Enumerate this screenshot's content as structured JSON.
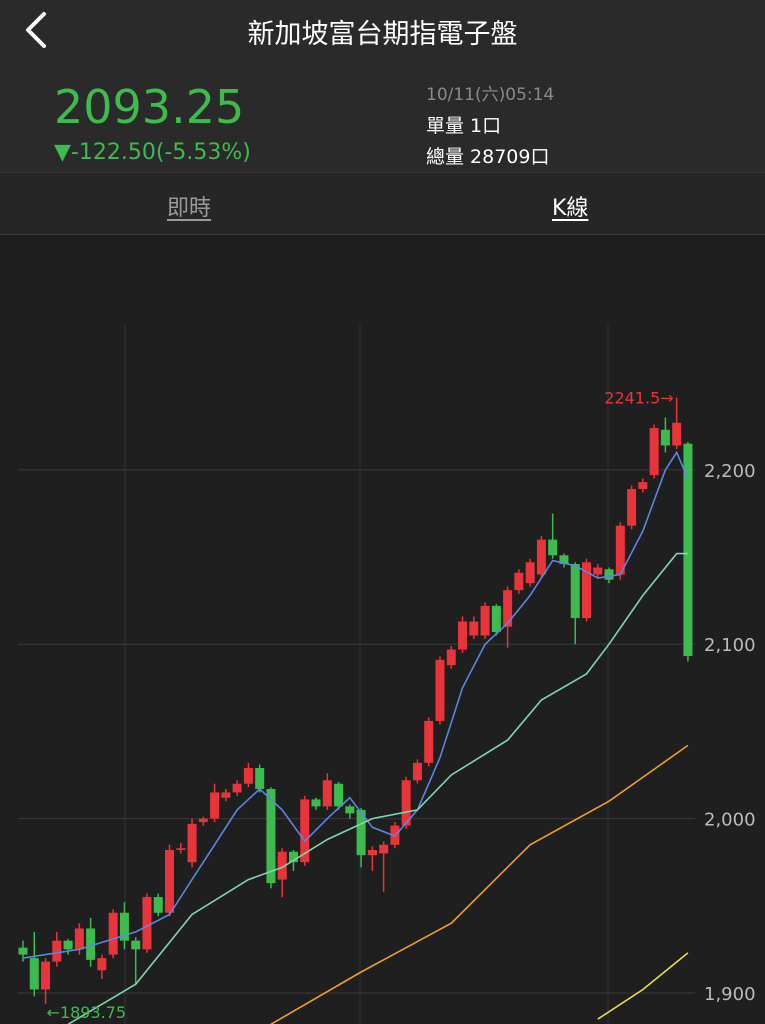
{
  "header": {
    "title": "新加坡富台期指電子盤"
  },
  "quote": {
    "price": "2093.25",
    "change": "▼-122.50(-5.53%)",
    "time": "10/11(六)05:14",
    "unit_volume": "單量 1口",
    "total_volume": "總量 28709口"
  },
  "tabs": [
    "即時",
    "K線"
  ],
  "chart_data": {
    "type": "candlestick",
    "ylim": [
      1882.2,
      2334.7
    ],
    "yticks": [
      {
        "value": 1900,
        "label": "1,900"
      },
      {
        "value": 2000,
        "label": "2,000"
      },
      {
        "value": 2100,
        "label": "2,100"
      },
      {
        "value": 2200,
        "label": "2,200"
      }
    ],
    "grid": true,
    "up_color": "#e8343b",
    "down_color": "#3dbb4e",
    "open": [
      1926,
      1920,
      1902,
      1918,
      1930,
      1925,
      1937,
      1913,
      1922,
      1946,
      1930,
      1925,
      1955,
      1946,
      1982,
      1975,
      1998,
      2000,
      2012,
      2015,
      2020,
      2029,
      2017,
      1965,
      1981,
      1975,
      2011,
      2007,
      2020,
      2007,
      2005,
      1979,
      1980,
      1985,
      1996,
      2022,
      2032,
      2056,
      2088,
      2097,
      2105,
      2105,
      2122,
      2110,
      2131,
      2135,
      2140,
      2160,
      2151,
      2146,
      2115,
      2140,
      2143,
      2140,
      2168,
      2189,
      2197,
      2223,
      2214,
      2215
    ],
    "high": [
      1930,
      1935,
      1920,
      1935,
      1931,
      1940,
      1943,
      1922,
      1948,
      1952,
      1932,
      1957,
      1957,
      1985,
      1986,
      2000,
      2001,
      2020,
      2017,
      2022,
      2032,
      2031,
      2018,
      1983,
      1982,
      2013,
      2012,
      2026,
      2021,
      2008,
      2006,
      1984,
      1987,
      1998,
      2024,
      2034,
      2058,
      2093,
      2099,
      2116,
      2116,
      2124,
      2123,
      2133,
      2143,
      2149,
      2162,
      2175,
      2152,
      2147,
      2149,
      2146,
      2144,
      2170,
      2191,
      2195,
      2226,
      2230,
      2241.5,
      2216
    ],
    "low": [
      1918,
      1898,
      1893.75,
      1915,
      1922,
      1922,
      1915,
      1908,
      1920,
      1925,
      1905,
      1923,
      1944,
      1944,
      1980,
      1972,
      1996,
      1998,
      2010,
      2013,
      2018,
      2015,
      1960,
      1955,
      1970,
      1973,
      2005,
      2005,
      2005,
      2000,
      1972,
      1970,
      1958,
      1983,
      1994,
      2020,
      2030,
      2054,
      2086,
      2095,
      2103,
      2103,
      2105,
      2098,
      2129,
      2133,
      2138,
      2149,
      2144,
      2100,
      2113,
      2138,
      2135,
      2137,
      2166,
      2187,
      2195,
      2210,
      2212,
      2090
    ],
    "close": [
      1922,
      1902,
      1918,
      1930,
      1925,
      1937,
      1919,
      1920,
      1946,
      1930,
      1925,
      1955,
      1946,
      1982,
      1983,
      1997,
      2000,
      2015,
      2015,
      2020,
      2029,
      2017,
      1963,
      1981,
      1975,
      2011,
      2007,
      2022,
      2007,
      2003,
      1979,
      1982,
      1985,
      1996,
      2022,
      2032,
      2056,
      2091,
      2097,
      2113,
      2113,
      2122,
      2107,
      2131,
      2141,
      2147,
      2160,
      2151,
      2146,
      2115,
      2147,
      2144,
      2137,
      2168,
      2189,
      2193,
      2224,
      2214,
      2227,
      2093.25
    ],
    "lines": [
      {
        "color": "#5b86e5",
        "x": [
          0,
          5,
          10,
          13,
          15,
          17,
          19,
          21,
          23,
          25,
          27,
          29,
          31,
          33,
          35,
          37,
          39,
          41,
          43,
          45,
          47,
          49,
          51,
          53,
          55,
          57,
          58,
          59
        ],
        "values": [
          1920,
          1925,
          1935,
          1945,
          1965,
          1985,
          2005,
          2017,
          2005,
          1987,
          2000,
          2012,
          1995,
          1990,
          2005,
          2035,
          2075,
          2100,
          2112,
          2128,
          2148,
          2145,
          2138,
          2140,
          2165,
          2200,
          2210,
          2195
        ]
      },
      {
        "color": "#7fd6b0",
        "x": [
          4,
          10,
          15,
          20,
          23,
          27,
          31,
          35,
          38,
          43,
          46,
          50,
          52,
          55,
          58,
          59
        ],
        "values": [
          1882,
          1905,
          1945,
          1965,
          1972,
          1988,
          2000,
          2005,
          2025,
          2045,
          2068,
          2083,
          2100,
          2128,
          2152,
          2152
        ]
      },
      {
        "color": "#f0a020",
        "x": [
          22,
          30,
          38,
          45,
          52,
          59
        ],
        "values": [
          1882,
          1912,
          1940,
          1985,
          2010,
          2042
        ]
      },
      {
        "color": "#e8e040",
        "x": [
          51,
          55,
          59
        ],
        "values": [
          1885,
          1902,
          1923
        ]
      }
    ],
    "annotations": [
      {
        "text": "2241.5→",
        "color": "#e8343b"
      },
      {
        "text": "←1893.75",
        "color": "#3dbb4e"
      }
    ]
  }
}
